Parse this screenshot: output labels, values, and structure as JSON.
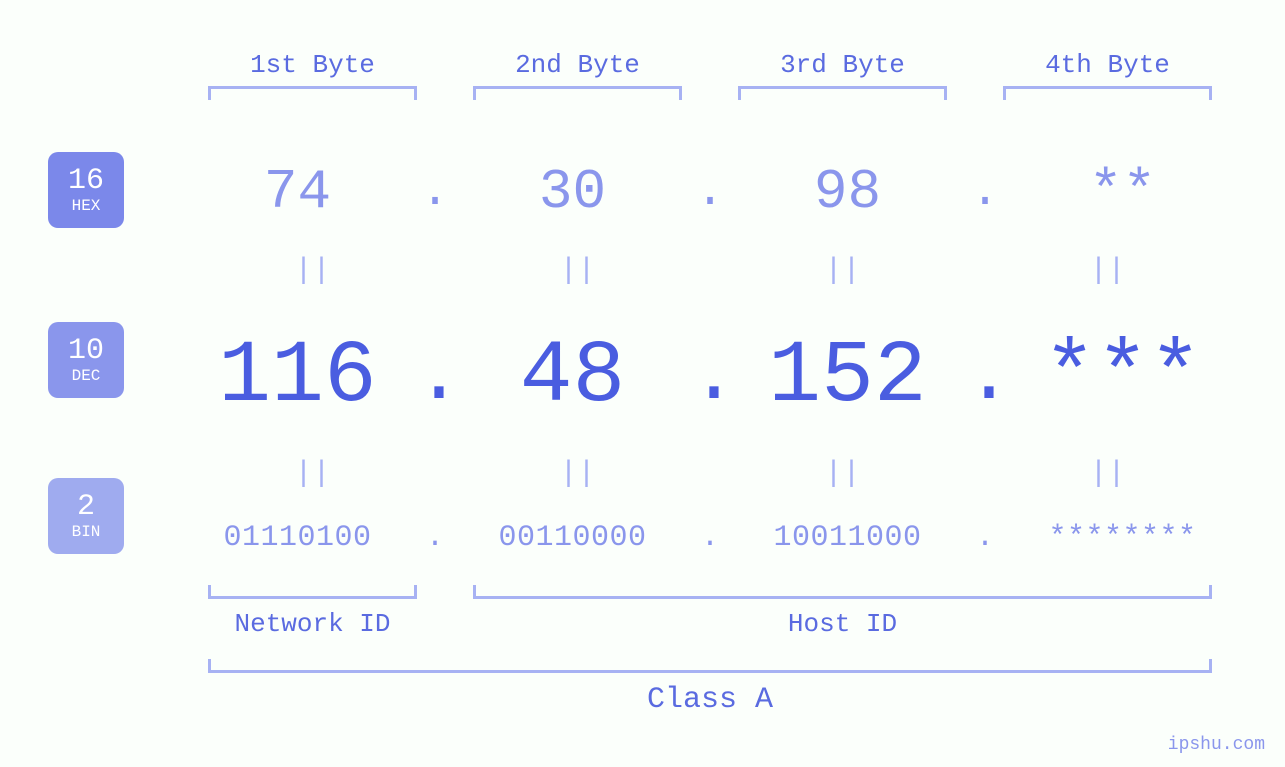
{
  "colors": {
    "background": "#fbfffb",
    "primary": "#4a5de0",
    "secondary": "#8a96ec",
    "bracket": "#a7b2f3",
    "badge_hex": "#7b88ea",
    "badge_dec": "#8a96ec",
    "badge_bin": "#9fabef",
    "label": "#5a6be0"
  },
  "typography": {
    "font_family": "monospace",
    "byte_label_size": 26,
    "hex_size": 56,
    "dec_size": 88,
    "bin_size": 30,
    "eq_size": 30,
    "nh_label_size": 26,
    "class_label_size": 30,
    "badge_num_size": 30,
    "badge_txt_size": 16
  },
  "bytes": {
    "labels": [
      "1st Byte",
      "2nd Byte",
      "3rd Byte",
      "4th Byte"
    ]
  },
  "hex": {
    "badge_num": "16",
    "badge_txt": "HEX",
    "values": [
      "74",
      "30",
      "98",
      "**"
    ]
  },
  "dec": {
    "badge_num": "10",
    "badge_txt": "DEC",
    "values": [
      "116",
      "48",
      "152",
      "***"
    ]
  },
  "bin": {
    "badge_num": "2",
    "badge_txt": "BIN",
    "values": [
      "01110100",
      "00110000",
      "10011000",
      "********"
    ]
  },
  "separator": ".",
  "equals": "||",
  "network_label": "Network ID",
  "host_label": "Host ID",
  "class_label": "Class A",
  "watermark": "ipshu.com"
}
